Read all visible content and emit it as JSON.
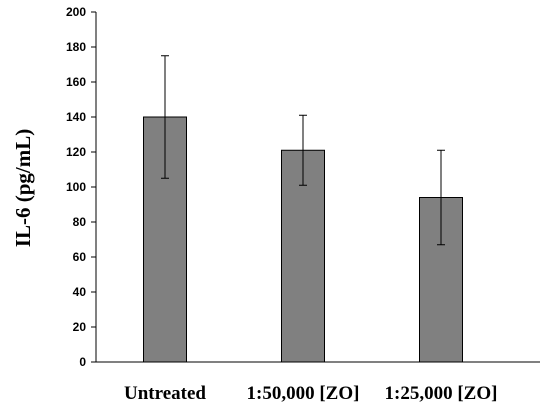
{
  "chart_data": {
    "type": "bar",
    "title": "",
    "xlabel": "",
    "ylabel": "IL-6 (pg/mL)",
    "categories": [
      "Untreated",
      "1:50,000 [ZO]",
      "1:25,000 [ZO]"
    ],
    "values": [
      140,
      121,
      94
    ],
    "error_upper": [
      175,
      141,
      121
    ],
    "error_lower": [
      105,
      101,
      67
    ],
    "ylim": [
      0,
      200
    ],
    "yticks": [
      "0",
      "20",
      "40",
      "60",
      "80",
      "100",
      "120",
      "140",
      "160",
      "180",
      "200"
    ],
    "grid": false,
    "bar_color": "#808080",
    "bar_edge_color": "#000000"
  }
}
